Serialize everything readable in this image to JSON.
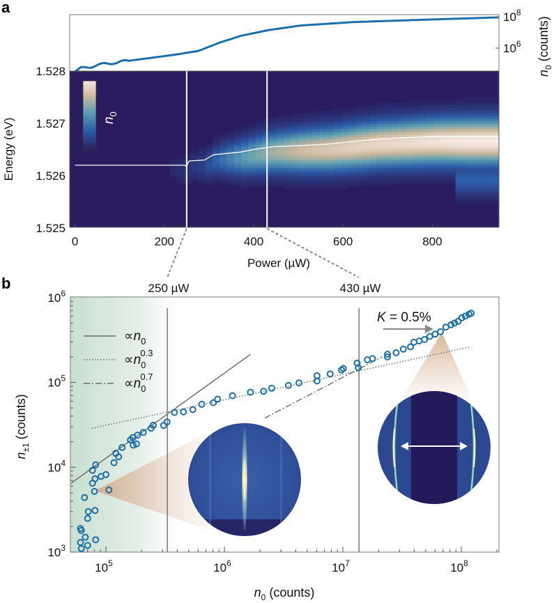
{
  "panel_labels": {
    "a": "a",
    "b": "b"
  },
  "colors": {
    "marker": "#1a6fa8",
    "curve": "#1a6fa8",
    "fit": "#6e6e6e",
    "cone": "#d8b8a0",
    "shade": "#cfe3d6"
  },
  "chart_data": [
    {
      "id": "a-top",
      "type": "line",
      "xlabel": "",
      "ylabel": "n0 (counts)",
      "ylabel_parts": {
        "var": "n",
        "sub": "0",
        "rest": " (counts)"
      },
      "yscale": "log",
      "ylim_log10": [
        4.4,
        8.1
      ],
      "xlim": [
        -12,
        950
      ],
      "y_ticks": [
        {
          "base": "10",
          "exp": "6",
          "log10": 6
        },
        {
          "base": "10",
          "exp": "8",
          "log10": 8
        }
      ],
      "x": [
        0,
        14,
        40,
        69,
        110,
        149,
        190,
        228,
        276,
        323,
        371,
        434,
        505,
        624,
        783,
        949
      ],
      "log10_y": [
        4.45,
        4.72,
        4.85,
        5.0,
        5.15,
        5.3,
        5.45,
        5.6,
        5.82,
        6.34,
        6.78,
        7.15,
        7.44,
        7.66,
        7.81,
        7.96
      ]
    },
    {
      "id": "a-heatmap",
      "type": "heatmap",
      "xlabel": "Power (µW)",
      "ylabel": "Energy (eV)",
      "xlim": [
        -12,
        950
      ],
      "ylim": [
        1.525,
        1.528
      ],
      "x_ticks": [
        "0",
        "200",
        "400",
        "600",
        "800"
      ],
      "x_tick_values": [
        0,
        200,
        400,
        600,
        800
      ],
      "y_ticks": [
        "1.525",
        "1.526",
        "1.527",
        "1.528"
      ],
      "y_tick_values": [
        1.525,
        1.526,
        1.527,
        1.528
      ],
      "colorbar_label": {
        "var": "n",
        "sub": "0"
      },
      "peak_energy_line": {
        "power": [
          0,
          245,
          250,
          255,
          290,
          310,
          370,
          400,
          440,
          560,
          620,
          680,
          800,
          950
        ],
        "energy": [
          1.5262,
          1.5262,
          1.52618,
          1.52628,
          1.5263,
          1.5264,
          1.52645,
          1.5265,
          1.52655,
          1.5266,
          1.52665,
          1.5267,
          1.52675,
          1.52675
        ]
      },
      "markers": [
        {
          "power": 250,
          "label": "250 µW"
        },
        {
          "power": 430,
          "label": "430 µW"
        }
      ]
    },
    {
      "id": "b",
      "type": "scatter",
      "xlabel_parts": {
        "var": "n",
        "sub": "0",
        "rest": " (counts)"
      },
      "ylabel_parts": {
        "var": "n",
        "sub": "±1",
        "rest": "  (counts)"
      },
      "xscale": "log",
      "yscale": "log",
      "xlim": [
        50000,
        210000000
      ],
      "ylim": [
        1000,
        1000000
      ],
      "x_ticks": [
        {
          "base": "10",
          "exp": "5"
        },
        {
          "base": "10",
          "exp": "6"
        },
        {
          "base": "10",
          "exp": "7"
        },
        {
          "base": "10",
          "exp": "8"
        }
      ],
      "y_ticks": [
        {
          "base": "10",
          "exp": "3"
        },
        {
          "base": "10",
          "exp": "4"
        },
        {
          "base": "10",
          "exp": "5"
        },
        {
          "base": "10",
          "exp": "6"
        }
      ],
      "vertical_lines_n0": [
        330000,
        13700000
      ],
      "annotation": "K = 0.5%",
      "legend": [
        {
          "prefix": "∝",
          "var": "n",
          "sub": "0",
          "exp": "",
          "style": "solid"
        },
        {
          "prefix": "∝",
          "var": "n",
          "sub": "0",
          "exp": "0.3",
          "style": "dotted"
        },
        {
          "prefix": "∝",
          "var": "n",
          "sub": "0",
          "exp": "0.7",
          "style": "dashdot"
        }
      ],
      "fits": [
        {
          "style": "solid",
          "x": [
            51000,
            1660000
          ],
          "y": [
            6500,
            214000
          ]
        },
        {
          "style": "dotted",
          "x": [
            76000,
            120000000
          ],
          "y": [
            28800,
            263000
          ]
        },
        {
          "style": "dashdot",
          "x": [
            2190000,
            21400000
          ],
          "y": [
            38000,
            200000
          ]
        }
      ],
      "x": [
        61000,
        62000,
        70000,
        67000,
        61000,
        62000,
        70000,
        71000,
        81000,
        82000,
        66000,
        80000,
        106000,
        77000,
        81000,
        91000,
        100000,
        77000,
        82000,
        117000,
        128000,
        121000,
        137000,
        170000,
        181000,
        161000,
        169000,
        185000,
        207000,
        241000,
        251000,
        307000,
        328000,
        379000,
        451000,
        542000,
        644000,
        807000,
        877000,
        1170000,
        1660000,
        2140000,
        2510000,
        3470000,
        4260000,
        6050000,
        6050000,
        7810000,
        9730000,
        10100000,
        13500000,
        13200000,
        16100000,
        17800000,
        23800000,
        23800000,
        28200000,
        32400000,
        37200000,
        39800000,
        44100000,
        48900000,
        54200000,
        60100000,
        66700000,
        74000000,
        81900000,
        87700000,
        94000000,
        101000000,
        108000000,
        116000000,
        121000000
      ],
      "y": [
        1300,
        1100,
        1200,
        1500,
        1900,
        1800,
        2500,
        3000,
        3100,
        1400,
        4400,
        5200,
        5400,
        6500,
        7300,
        7800,
        8200,
        9200,
        10700,
        11300,
        13300,
        14600,
        17100,
        18200,
        18800,
        21000,
        22400,
        23900,
        25800,
        28900,
        31300,
        31100,
        34200,
        44300,
        44900,
        47800,
        55200,
        57800,
        63500,
        69800,
        76800,
        78700,
        85500,
        92100,
        98800,
        104000,
        120000,
        126000,
        140000,
        146000,
        149000,
        169000,
        185000,
        191000,
        215000,
        200000,
        224000,
        247000,
        263000,
        298000,
        308000,
        321000,
        349000,
        371000,
        396000,
        449000,
        478000,
        500000,
        526000,
        578000,
        604000,
        635000,
        655000
      ]
    }
  ]
}
